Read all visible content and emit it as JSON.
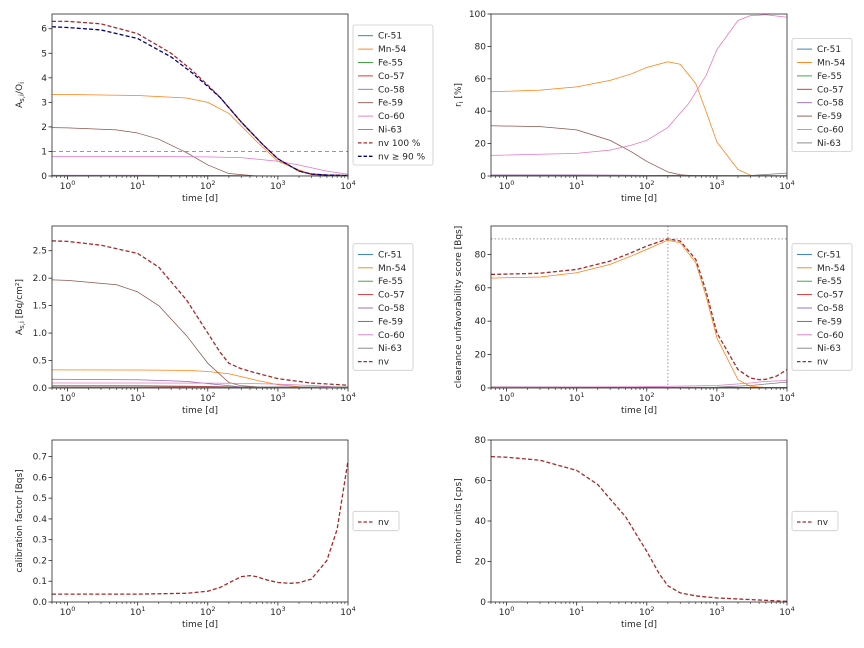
{
  "colors": {
    "Cr-51": "#1f77b4",
    "Mn-54": "#ff7f0e",
    "Fe-55": "#2ca02c",
    "Co-57": "#d62728",
    "Co-58": "#9467bd",
    "Fe-59": "#8c564b",
    "Co-60": "#e377c2",
    "Ni-63": "#7f7f7f",
    "nv": "#a52a2a",
    "nv100": "#a52a2a",
    "nv90": "#000080",
    "ref": "#999999"
  },
  "chart_data": [
    {
      "id": "p1",
      "type": "line",
      "xlabel": "time [d]",
      "ylabel": "A_{s,i}/O_i",
      "xscale": "log",
      "xlim": [
        0.6,
        10000
      ],
      "ylim": [
        0,
        6.6
      ],
      "yticks": [
        0,
        1,
        2,
        3,
        4,
        5,
        6
      ],
      "legend": "right",
      "hline": 1,
      "series": [
        {
          "name": "Cr-51",
          "style": "solid",
          "x": [
            0.6,
            10,
            30,
            60,
            100,
            300,
            10000
          ],
          "y": [
            0.02,
            0.02,
            0.015,
            0.01,
            0.005,
            0,
            0
          ]
        },
        {
          "name": "Mn-54",
          "style": "solid",
          "x": [
            0.6,
            1,
            10,
            50,
            100,
            200,
            500,
            1000,
            3000,
            10000
          ],
          "y": [
            3.32,
            3.32,
            3.28,
            3.18,
            3.0,
            2.55,
            1.4,
            0.6,
            0.05,
            0
          ]
        },
        {
          "name": "Fe-55",
          "style": "solid",
          "x": [
            0.6,
            10,
            100,
            1000,
            10000
          ],
          "y": [
            0.01,
            0.01,
            0.01,
            0.005,
            0
          ]
        },
        {
          "name": "Co-57",
          "style": "solid",
          "x": [
            0.6,
            10,
            100,
            1000,
            10000
          ],
          "y": [
            0.02,
            0.02,
            0.015,
            0.005,
            0
          ]
        },
        {
          "name": "Co-58",
          "style": "solid",
          "x": [
            0.6,
            10,
            100,
            1000,
            10000
          ],
          "y": [
            0.03,
            0.03,
            0.02,
            0,
            0
          ]
        },
        {
          "name": "Fe-59",
          "style": "solid",
          "x": [
            0.6,
            1,
            5,
            10,
            20,
            50,
            100,
            200,
            500,
            10000
          ],
          "y": [
            1.97,
            1.96,
            1.88,
            1.75,
            1.5,
            0.95,
            0.45,
            0.1,
            0,
            0
          ]
        },
        {
          "name": "Co-60",
          "style": "solid",
          "x": [
            0.6,
            10,
            100,
            300,
            1000,
            2000,
            5000,
            10000
          ],
          "y": [
            0.8,
            0.8,
            0.78,
            0.75,
            0.6,
            0.45,
            0.2,
            0.07
          ]
        },
        {
          "name": "Ni-63",
          "style": "solid",
          "x": [
            0.6,
            10000
          ],
          "y": [
            0,
            0
          ]
        },
        {
          "name": "nv 100 %",
          "style": "dashed",
          "x": [
            0.6,
            1,
            3,
            10,
            30,
            60,
            100,
            150,
            300,
            600,
            1000,
            2000,
            3000,
            5000,
            10000
          ],
          "y": [
            6.3,
            6.3,
            6.2,
            5.8,
            5.0,
            4.3,
            3.7,
            3.2,
            2.2,
            1.3,
            0.7,
            0.2,
            0.08,
            0.04,
            0.02
          ]
        },
        {
          "name": "nv ≥ 90 %",
          "style": "dashed",
          "x": [
            0.6,
            1,
            3,
            10,
            30,
            60,
            100,
            150,
            300,
            600,
            1000,
            2000,
            3000,
            5000,
            10000
          ],
          "y": [
            6.08,
            6.05,
            5.95,
            5.6,
            4.85,
            4.2,
            3.65,
            3.2,
            2.2,
            1.3,
            0.7,
            0.2,
            0.08,
            0.04,
            0.02
          ]
        }
      ]
    },
    {
      "id": "p2",
      "type": "line",
      "xlabel": "time [d]",
      "ylabel": "r_i [%]",
      "xscale": "log",
      "xlim": [
        0.6,
        10000
      ],
      "ylim": [
        0,
        100
      ],
      "yticks": [
        0,
        20,
        40,
        60,
        80,
        100
      ],
      "legend": "right",
      "series": [
        {
          "name": "Cr-51",
          "style": "solid",
          "x": [
            0.6,
            10,
            100,
            10000
          ],
          "y": [
            0.3,
            0.3,
            0.2,
            0
          ]
        },
        {
          "name": "Mn-54",
          "style": "solid",
          "x": [
            0.6,
            3,
            10,
            30,
            60,
            100,
            200,
            300,
            500,
            700,
            1000,
            2000,
            3000,
            10000
          ],
          "y": [
            52,
            53,
            55,
            59,
            63,
            67,
            70.5,
            69,
            57,
            40,
            21,
            4,
            0.5,
            0
          ]
        },
        {
          "name": "Fe-55",
          "style": "solid",
          "x": [
            0.6,
            10000
          ],
          "y": [
            0.2,
            0.2
          ]
        },
        {
          "name": "Co-57",
          "style": "solid",
          "x": [
            0.6,
            10,
            100,
            1000,
            10000
          ],
          "y": [
            0.5,
            0.5,
            0.4,
            0.2,
            0
          ]
        },
        {
          "name": "Co-58",
          "style": "solid",
          "x": [
            0.6,
            10,
            100,
            1000,
            10000
          ],
          "y": [
            0.6,
            0.6,
            0.4,
            0,
            0
          ]
        },
        {
          "name": "Fe-59",
          "style": "solid",
          "x": [
            0.6,
            3,
            10,
            30,
            60,
            100,
            200,
            300,
            500,
            10000
          ],
          "y": [
            31,
            30.5,
            28.5,
            22,
            15,
            9,
            2.5,
            0.8,
            0,
            0
          ]
        },
        {
          "name": "Co-60",
          "style": "solid",
          "x": [
            0.6,
            10,
            30,
            60,
            100,
            200,
            400,
            700,
            1000,
            2000,
            3000,
            5000,
            10000
          ],
          "y": [
            12.7,
            14,
            16,
            19,
            22,
            30,
            45,
            62,
            78,
            96,
            99,
            99.5,
            98
          ]
        },
        {
          "name": "Ni-63",
          "style": "solid",
          "x": [
            0.6,
            1000,
            3000,
            10000
          ],
          "y": [
            0,
            0,
            0.3,
            1.8
          ]
        }
      ]
    },
    {
      "id": "p3",
      "type": "line",
      "xlabel": "time [d]",
      "ylabel": "A_{s,i} [Bq/cm²]",
      "xscale": "log",
      "xlim": [
        0.6,
        10000
      ],
      "ylim": [
        0,
        2.95
      ],
      "yticks": [
        0.0,
        0.5,
        1.0,
        1.5,
        2.0,
        2.5
      ],
      "legend": "right",
      "series": [
        {
          "name": "Cr-51",
          "style": "solid",
          "x": [
            0.6,
            10,
            30,
            100,
            300,
            10000
          ],
          "y": [
            0.015,
            0.012,
            0.008,
            0.003,
            0,
            0
          ]
        },
        {
          "name": "Mn-54",
          "style": "solid",
          "x": [
            0.6,
            10,
            50,
            100,
            200,
            500,
            1000,
            3000,
            10000
          ],
          "y": [
            0.33,
            0.328,
            0.32,
            0.3,
            0.26,
            0.14,
            0.06,
            0.005,
            0
          ]
        },
        {
          "name": "Fe-55",
          "style": "solid",
          "x": [
            0.6,
            10,
            100,
            1000,
            10000
          ],
          "y": [
            0.02,
            0.02,
            0.02,
            0.01,
            0
          ]
        },
        {
          "name": "Co-57",
          "style": "solid",
          "x": [
            0.6,
            10,
            100,
            1000,
            10000
          ],
          "y": [
            0.04,
            0.04,
            0.03,
            0.01,
            0
          ]
        },
        {
          "name": "Co-58",
          "style": "solid",
          "x": [
            0.6,
            10,
            50,
            100,
            300,
            10000
          ],
          "y": [
            0.16,
            0.15,
            0.12,
            0.08,
            0.02,
            0
          ]
        },
        {
          "name": "Fe-59",
          "style": "solid",
          "x": [
            0.6,
            1,
            5,
            10,
            20,
            50,
            100,
            200,
            300,
            1000,
            10000
          ],
          "y": [
            1.97,
            1.96,
            1.88,
            1.75,
            1.5,
            0.95,
            0.45,
            0.1,
            0.04,
            0,
            0
          ]
        },
        {
          "name": "Co-60",
          "style": "solid",
          "x": [
            0.6,
            10,
            100,
            300,
            1000,
            3000,
            10000
          ],
          "y": [
            0.09,
            0.09,
            0.088,
            0.085,
            0.07,
            0.045,
            0.01
          ]
        },
        {
          "name": "Ni-63",
          "style": "solid",
          "x": [
            0.6,
            10000
          ],
          "y": [
            0.02,
            0.02
          ]
        },
        {
          "name": "nv",
          "style": "dashed",
          "x": [
            0.6,
            1,
            3,
            10,
            20,
            50,
            100,
            150,
            200,
            300,
            500,
            1000,
            3000,
            10000
          ],
          "y": [
            2.68,
            2.67,
            2.6,
            2.45,
            2.2,
            1.6,
            1.0,
            0.65,
            0.45,
            0.35,
            0.27,
            0.17,
            0.09,
            0.05
          ]
        }
      ]
    },
    {
      "id": "p4",
      "type": "line",
      "xlabel": "time [d]",
      "ylabel": "clearance unfavorability score [Bqs]",
      "xscale": "log",
      "xlim": [
        0.6,
        10000
      ],
      "ylim": [
        0,
        97
      ],
      "yticks": [
        0,
        20,
        40,
        60,
        80
      ],
      "legend": "right",
      "hline": 89.3,
      "vline": 200,
      "series": [
        {
          "name": "Cr-51",
          "style": "solid",
          "x": [
            0.6,
            10000
          ],
          "y": [
            0.2,
            0
          ]
        },
        {
          "name": "Mn-54",
          "style": "solid",
          "x": [
            0.6,
            3,
            10,
            30,
            60,
            100,
            200,
            300,
            500,
            700,
            1000,
            2000,
            3000,
            5000,
            10000
          ],
          "y": [
            65.8,
            66.5,
            69,
            74,
            79,
            83,
            88.5,
            87,
            75,
            55,
            30,
            5,
            1,
            0.3,
            0
          ]
        },
        {
          "name": "Fe-55",
          "style": "solid",
          "x": [
            0.6,
            10000
          ],
          "y": [
            0.3,
            0.3
          ]
        },
        {
          "name": "Co-57",
          "style": "solid",
          "x": [
            0.6,
            10000
          ],
          "y": [
            0.5,
            0.3
          ]
        },
        {
          "name": "Co-58",
          "style": "solid",
          "x": [
            0.6,
            100,
            1000,
            10000
          ],
          "y": [
            0.7,
            0.5,
            0,
            0
          ]
        },
        {
          "name": "Fe-59",
          "style": "solid",
          "x": [
            0.6,
            100,
            300,
            10000
          ],
          "y": [
            0.5,
            0.4,
            0,
            0
          ]
        },
        {
          "name": "Co-60",
          "style": "solid",
          "x": [
            0.6,
            100,
            1000,
            3000,
            5000,
            10000
          ],
          "y": [
            0.5,
            0.8,
            1.5,
            3,
            4,
            4.5
          ]
        },
        {
          "name": "Ni-63",
          "style": "solid",
          "x": [
            0.6,
            1000,
            3000,
            10000
          ],
          "y": [
            0,
            0.5,
            1.5,
            3.5
          ]
        },
        {
          "name": "nv",
          "style": "dashed",
          "x": [
            0.6,
            3,
            10,
            30,
            60,
            100,
            200,
            300,
            500,
            700,
            1000,
            2000,
            3000,
            4000,
            5000,
            7000,
            10000
          ],
          "y": [
            68,
            68.7,
            71,
            76,
            81,
            85,
            89.3,
            88,
            77,
            58,
            33,
            11,
            6,
            5,
            5.2,
            7,
            11
          ]
        }
      ]
    },
    {
      "id": "p5",
      "type": "line",
      "xlabel": "time [d]",
      "ylabel": "calibration factor [Bqs]",
      "xscale": "log",
      "xlim": [
        0.6,
        10000
      ],
      "ylim": [
        0,
        0.78
      ],
      "yticks": [
        0.0,
        0.1,
        0.2,
        0.3,
        0.4,
        0.5,
        0.6,
        0.7
      ],
      "legend": "right",
      "series": [
        {
          "name": "nv",
          "style": "dashed",
          "x": [
            0.6,
            10,
            50,
            100,
            150,
            200,
            300,
            400,
            500,
            700,
            1000,
            1500,
            2000,
            3000,
            5000,
            7000,
            10000
          ],
          "y": [
            0.038,
            0.038,
            0.042,
            0.052,
            0.07,
            0.092,
            0.122,
            0.127,
            0.122,
            0.106,
            0.094,
            0.09,
            0.093,
            0.11,
            0.2,
            0.35,
            0.68
          ]
        }
      ]
    },
    {
      "id": "p6",
      "type": "line",
      "xlabel": "time [d]",
      "ylabel": "monitor units [cps]",
      "xscale": "log",
      "xlim": [
        0.6,
        10000
      ],
      "ylim": [
        0,
        80
      ],
      "yticks": [
        0,
        20,
        40,
        60,
        80
      ],
      "legend": "right",
      "series": [
        {
          "name": "nv",
          "style": "dashed",
          "x": [
            0.6,
            1,
            3,
            10,
            20,
            50,
            100,
            150,
            200,
            300,
            500,
            1000,
            3000,
            10000
          ],
          "y": [
            71.8,
            71.5,
            70,
            65,
            58,
            42,
            25,
            14,
            8,
            4.5,
            3,
            2,
            1.2,
            0.3
          ]
        }
      ]
    }
  ]
}
